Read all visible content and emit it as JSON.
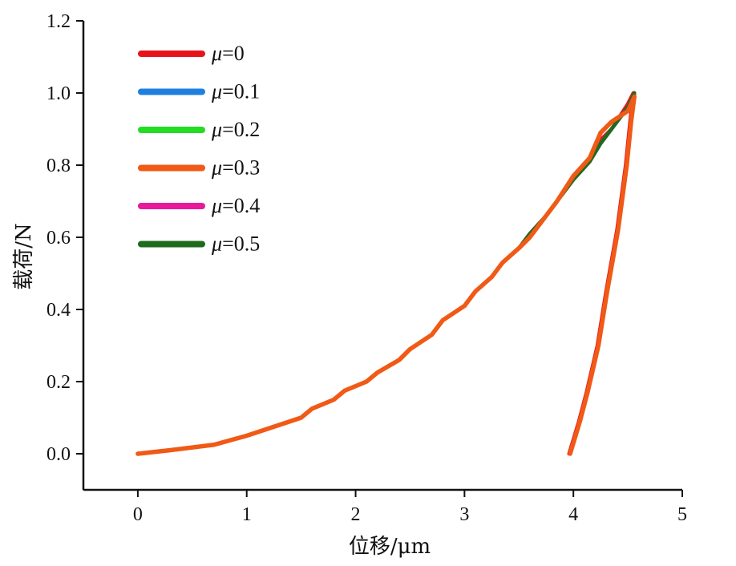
{
  "chart_data": {
    "type": "line",
    "xlabel": "位移/μm",
    "ylabel": "载荷/N",
    "xlim": [
      -0.5,
      5
    ],
    "ylim": [
      -0.1,
      1.2
    ],
    "xticks": [
      0,
      1,
      2,
      3,
      4,
      5
    ],
    "xtick_labels": [
      "0",
      "1",
      "2",
      "3",
      "4",
      "5"
    ],
    "yticks": [
      0.0,
      0.2,
      0.4,
      0.6,
      0.8,
      1.0,
      1.2
    ],
    "ytick_labels": [
      "0.0",
      "0.2",
      "0.4",
      "0.6",
      "0.8",
      "1.0",
      "1.2"
    ],
    "grid": false,
    "legend_position": "top-left",
    "series": [
      {
        "name": "μ=0",
        "legend_symbol": "μ",
        "legend_value": "=0",
        "color": "#e8141c",
        "x": [
          0,
          0.3,
          0.7,
          1.0,
          1.3,
          1.5,
          1.6,
          1.8,
          1.9,
          2.1,
          2.2,
          2.4,
          2.5,
          2.7,
          2.8,
          3.0,
          3.1,
          3.25,
          3.35,
          3.5,
          3.6,
          3.75,
          3.85,
          4.0,
          4.15,
          4.25,
          4.35,
          4.5,
          4.55,
          4.52,
          4.48,
          4.4,
          4.3,
          4.22,
          4.12,
          4.05,
          4.0,
          3.96
        ],
        "y": [
          0.0,
          0.01,
          0.025,
          0.05,
          0.08,
          0.1,
          0.125,
          0.15,
          0.175,
          0.2,
          0.225,
          0.26,
          0.29,
          0.33,
          0.37,
          0.41,
          0.45,
          0.49,
          0.53,
          0.57,
          0.61,
          0.66,
          0.7,
          0.76,
          0.81,
          0.87,
          0.9,
          0.97,
          1.0,
          0.92,
          0.8,
          0.62,
          0.45,
          0.3,
          0.17,
          0.09,
          0.04,
          0.0
        ]
      },
      {
        "name": "μ=0.1",
        "legend_symbol": "μ",
        "legend_value": "=0.1",
        "color": "#1f7fe0",
        "x": [
          0,
          0.3,
          0.7,
          1.0,
          1.3,
          1.5,
          1.6,
          1.8,
          1.9,
          2.1,
          2.2,
          2.4,
          2.5,
          2.7,
          2.8,
          3.0,
          3.1,
          3.25,
          3.35,
          3.5,
          3.6,
          3.75,
          3.85,
          4.0,
          4.15,
          4.25,
          4.35,
          4.5,
          4.56,
          4.53,
          4.49,
          4.41,
          4.31,
          4.23,
          4.13,
          4.06,
          4.01,
          3.97
        ],
        "y": [
          0.0,
          0.01,
          0.025,
          0.05,
          0.08,
          0.1,
          0.125,
          0.15,
          0.175,
          0.2,
          0.225,
          0.26,
          0.29,
          0.33,
          0.37,
          0.41,
          0.45,
          0.49,
          0.53,
          0.57,
          0.61,
          0.66,
          0.7,
          0.76,
          0.81,
          0.86,
          0.9,
          0.96,
          1.0,
          0.92,
          0.8,
          0.62,
          0.45,
          0.3,
          0.17,
          0.09,
          0.04,
          0.0
        ]
      },
      {
        "name": "μ=0.2",
        "legend_symbol": "μ",
        "legend_value": "=0.2",
        "color": "#22dd22",
        "x": [
          0,
          0.3,
          0.7,
          1.0,
          1.3,
          1.5,
          1.6,
          1.8,
          1.9,
          2.1,
          2.2,
          2.4,
          2.5,
          2.7,
          2.8,
          3.0,
          3.1,
          3.25,
          3.35,
          3.5,
          3.6,
          3.75,
          3.85,
          4.0,
          4.15,
          4.25,
          4.35,
          4.5,
          4.56,
          4.53,
          4.49,
          4.41,
          4.31,
          4.23,
          4.13,
          4.06,
          4.01,
          3.97
        ],
        "y": [
          0.0,
          0.01,
          0.025,
          0.05,
          0.08,
          0.1,
          0.125,
          0.15,
          0.175,
          0.2,
          0.225,
          0.26,
          0.29,
          0.33,
          0.37,
          0.41,
          0.45,
          0.49,
          0.53,
          0.57,
          0.61,
          0.66,
          0.7,
          0.76,
          0.81,
          0.86,
          0.9,
          0.96,
          1.0,
          0.92,
          0.8,
          0.62,
          0.45,
          0.3,
          0.17,
          0.09,
          0.04,
          0.0
        ]
      },
      {
        "name": "μ=0.3",
        "legend_symbol": "μ",
        "legend_value": "=0.3",
        "color": "#f05a16",
        "x": [
          0,
          0.3,
          0.7,
          1.0,
          1.3,
          1.5,
          1.6,
          1.8,
          1.9,
          2.1,
          2.2,
          2.4,
          2.5,
          2.7,
          2.8,
          3.0,
          3.1,
          3.25,
          3.35,
          3.5,
          3.6,
          3.75,
          3.85,
          4.0,
          4.15,
          4.25,
          4.35,
          4.5,
          4.56,
          4.53,
          4.49,
          4.41,
          4.31,
          4.23,
          4.13,
          4.06,
          4.01,
          3.97
        ],
        "y": [
          0.0,
          0.01,
          0.025,
          0.05,
          0.08,
          0.1,
          0.125,
          0.15,
          0.175,
          0.2,
          0.225,
          0.26,
          0.29,
          0.33,
          0.37,
          0.41,
          0.45,
          0.49,
          0.53,
          0.57,
          0.6,
          0.66,
          0.7,
          0.77,
          0.82,
          0.89,
          0.92,
          0.95,
          0.99,
          0.92,
          0.8,
          0.62,
          0.45,
          0.3,
          0.17,
          0.09,
          0.04,
          0.0
        ]
      },
      {
        "name": "μ=0.4",
        "legend_symbol": "μ",
        "legend_value": "=0.4",
        "color": "#e8199c",
        "x": [
          0,
          0.3,
          0.7,
          1.0,
          1.3,
          1.5,
          1.6,
          1.8,
          1.9,
          2.1,
          2.2,
          2.4,
          2.5,
          2.7,
          2.8,
          3.0,
          3.1,
          3.25,
          3.35,
          3.5,
          3.6,
          3.75,
          3.85,
          4.0,
          4.15,
          4.25,
          4.35,
          4.5,
          4.56,
          4.53,
          4.49,
          4.41,
          4.31,
          4.23,
          4.13,
          4.06,
          4.01,
          3.97
        ],
        "y": [
          0.0,
          0.01,
          0.025,
          0.05,
          0.08,
          0.1,
          0.125,
          0.15,
          0.175,
          0.2,
          0.225,
          0.26,
          0.29,
          0.33,
          0.37,
          0.41,
          0.45,
          0.49,
          0.53,
          0.57,
          0.61,
          0.66,
          0.7,
          0.76,
          0.81,
          0.86,
          0.9,
          0.96,
          1.0,
          0.92,
          0.8,
          0.62,
          0.45,
          0.3,
          0.17,
          0.09,
          0.04,
          0.0
        ]
      },
      {
        "name": "μ=0.5",
        "legend_symbol": "μ",
        "legend_value": "=0.5",
        "color": "#1e6b1e",
        "x": [
          0,
          0.3,
          0.7,
          1.0,
          1.3,
          1.5,
          1.6,
          1.8,
          1.9,
          2.1,
          2.2,
          2.4,
          2.5,
          2.7,
          2.8,
          3.0,
          3.1,
          3.25,
          3.35,
          3.5,
          3.6,
          3.75,
          3.85,
          4.0,
          4.15,
          4.25,
          4.35,
          4.5,
          4.56,
          4.53,
          4.49,
          4.41,
          4.31,
          4.23,
          4.13,
          4.06,
          4.01,
          3.97
        ],
        "y": [
          0.0,
          0.01,
          0.025,
          0.05,
          0.08,
          0.1,
          0.125,
          0.15,
          0.175,
          0.2,
          0.225,
          0.26,
          0.29,
          0.33,
          0.37,
          0.41,
          0.45,
          0.49,
          0.53,
          0.57,
          0.61,
          0.66,
          0.7,
          0.76,
          0.81,
          0.86,
          0.9,
          0.96,
          1.0,
          0.92,
          0.8,
          0.62,
          0.45,
          0.3,
          0.17,
          0.09,
          0.04,
          0.0
        ]
      }
    ]
  }
}
